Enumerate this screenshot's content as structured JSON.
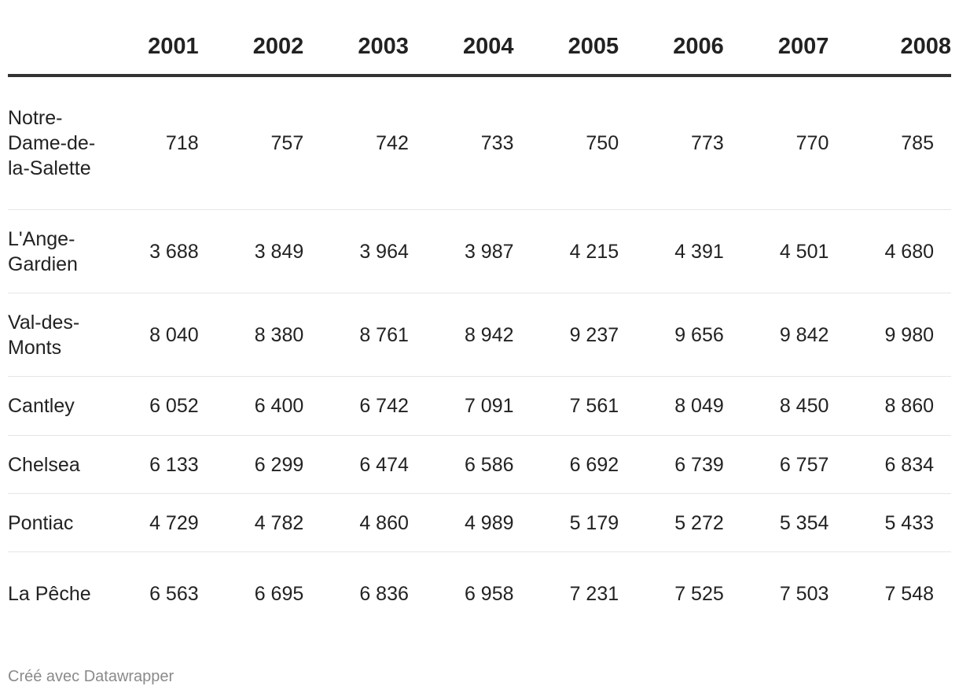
{
  "chart_data": {
    "type": "table",
    "columns": [
      "",
      "2001",
      "2002",
      "2003",
      "2004",
      "2005",
      "2006",
      "2007",
      "2008"
    ],
    "rows": [
      {
        "label": "Notre-Dame-de-la-Salette",
        "values": [
          "718",
          "757",
          "742",
          "733",
          "750",
          "773",
          "770",
          "785"
        ]
      },
      {
        "label": "L'Ange-Gardien",
        "values": [
          "3 688",
          "3 849",
          "3 964",
          "3 987",
          "4 215",
          "4 391",
          "4 501",
          "4 680"
        ]
      },
      {
        "label": "Val-des-Monts",
        "values": [
          "8 040",
          "8 380",
          "8 761",
          "8 942",
          "9 237",
          "9 656",
          "9 842",
          "9 980"
        ]
      },
      {
        "label": "Cantley",
        "values": [
          "6 052",
          "6 400",
          "6 742",
          "7 091",
          "7 561",
          "8 049",
          "8 450",
          "8 860"
        ]
      },
      {
        "label": "Chelsea",
        "values": [
          "6 133",
          "6 299",
          "6 474",
          "6 586",
          "6 692",
          "6 739",
          "6 757",
          "6 834"
        ]
      },
      {
        "label": "Pontiac",
        "values": [
          "4 729",
          "4 782",
          "4 860",
          "4 989",
          "5 179",
          "5 272",
          "5 354",
          "5 433"
        ]
      },
      {
        "label": "La Pêche",
        "values": [
          "6 563",
          "6 695",
          "6 836",
          "6 958",
          "7 231",
          "7 525",
          "7 503",
          "7 548"
        ]
      }
    ]
  },
  "footer": {
    "credit": "Créé avec Datawrapper"
  }
}
